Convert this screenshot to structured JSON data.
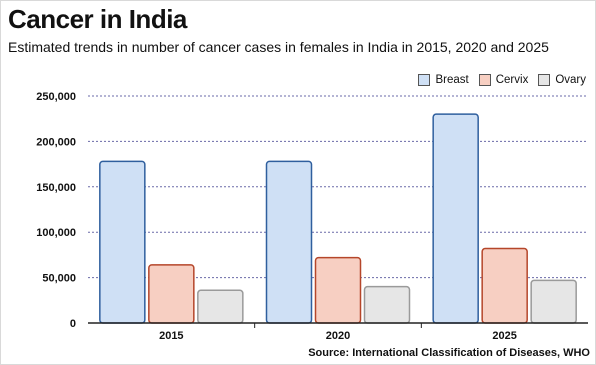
{
  "header": {
    "title": "Cancer in India",
    "subtitle": "Estimated trends in number of cancer cases in females in India in 2015, 2020 and 2025"
  },
  "source": "Source: International Classification of Diseases, WHO",
  "chart_data": {
    "type": "bar",
    "categories": [
      "2015",
      "2020",
      "2025"
    ],
    "series": [
      {
        "name": "Breast",
        "values": [
          178000,
          178000,
          230000
        ],
        "color": "#cfe0f5"
      },
      {
        "name": "Cervix",
        "values": [
          64000,
          72000,
          82000
        ],
        "color": "#f7cfc2"
      },
      {
        "name": "Ovary",
        "values": [
          36000,
          40000,
          47000
        ],
        "color": "#e6e6e6"
      }
    ],
    "ylim": [
      0,
      250000
    ],
    "yticks": [
      "0",
      "50,000",
      "100,000",
      "150,000",
      "200,000",
      "250,000"
    ],
    "legend_position": "top-right",
    "grid": true
  }
}
